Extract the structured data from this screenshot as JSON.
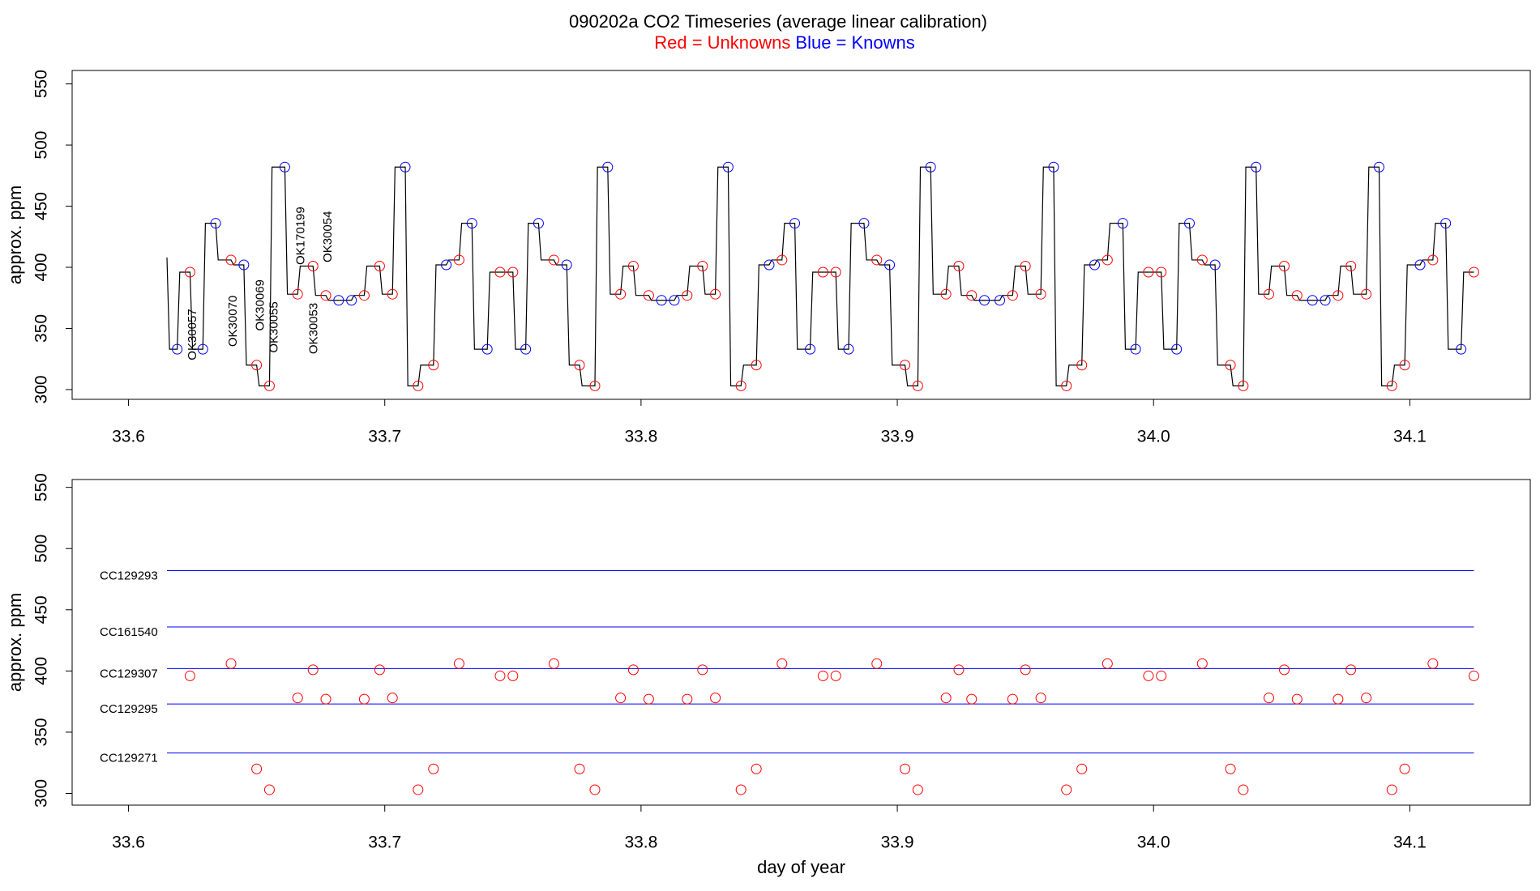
{
  "title": "090202a   CO2 Timeseries (average linear calibration)",
  "subtitle": [
    {
      "text": "Red = Unknowns",
      "color": "#ff0000"
    },
    {
      "text": "Blue = Knowns",
      "color": "#0000ff"
    }
  ],
  "chart_data": [
    {
      "type": "line",
      "ylabel": "approx. ppm",
      "xlim": [
        33.578,
        34.147
      ],
      "ylim": [
        292,
        561
      ],
      "xticks": [
        33.6,
        33.7,
        33.8,
        33.9,
        {
          "value": 34,
          "label": "34.0"
        },
        34.1
      ],
      "yticks": [
        300,
        350,
        400,
        450,
        500,
        550
      ],
      "series": [
        {
          "mode": "line",
          "color": "#000000",
          "x": [
            33.615,
            33.616,
            33.619,
            33.62,
            33.624,
            33.625,
            33.629,
            33.63,
            33.634,
            33.635,
            33.64,
            33.641,
            33.645,
            33.646,
            33.65,
            33.651,
            33.655,
            33.656,
            33.661,
            33.662,
            33.666,
            33.667,
            33.672,
            33.673,
            33.677,
            33.678,
            33.682,
            33.683,
            33.687,
            33.688,
            33.692,
            33.693,
            33.698,
            33.699,
            33.703,
            33.704,
            33.708,
            33.709,
            33.713,
            33.714,
            33.719,
            33.72,
            33.724,
            33.725,
            33.729,
            33.73,
            33.734,
            33.735,
            33.74,
            33.741,
            33.745,
            33.746,
            33.75,
            33.751,
            33.755,
            33.756,
            33.76,
            33.761,
            33.766,
            33.767,
            33.771,
            33.772,
            33.776,
            33.777,
            33.782,
            33.783,
            33.787,
            33.788,
            33.792,
            33.793,
            33.797,
            33.798,
            33.803,
            33.804,
            33.808,
            33.809,
            33.813,
            33.814,
            33.818,
            33.819,
            33.824,
            33.825,
            33.829,
            33.83,
            33.834,
            33.835,
            33.839,
            33.84,
            33.845,
            33.846,
            33.85,
            33.851,
            33.855,
            33.856,
            33.86,
            33.861,
            33.866,
            33.867,
            33.871,
            33.872,
            33.876,
            33.877,
            33.881,
            33.882,
            33.887,
            33.888,
            33.892,
            33.893,
            33.897,
            33.898,
            33.903,
            33.904,
            33.908,
            33.909,
            33.913,
            33.914,
            33.919,
            33.92,
            33.924,
            33.925,
            33.929,
            33.93,
            33.934,
            33.935,
            33.94,
            33.941,
            33.945,
            33.946,
            33.95,
            33.951,
            33.956,
            33.957,
            33.961,
            33.962,
            33.966,
            33.967,
            33.972,
            33.973,
            33.977,
            33.978,
            33.982,
            33.983,
            33.988,
            33.989,
            33.993,
            33.994,
            33.998,
            33.999,
            34.003,
            34.004,
            34.009,
            34.01,
            34.014,
            34.015,
            34.019,
            34.02,
            34.024,
            34.025,
            34.03,
            34.031,
            34.035,
            34.036,
            34.04,
            34.041,
            34.045,
            34.046,
            34.051,
            34.052,
            34.056,
            34.057,
            34.062,
            34.063,
            34.067,
            34.068,
            34.072,
            34.073,
            34.077,
            34.078,
            34.083,
            34.084,
            34.088,
            34.089,
            34.093,
            34.094,
            34.098,
            34.099,
            34.104,
            34.105,
            34.109,
            34.11,
            34.114,
            34.115,
            34.12,
            34.121,
            34.125
          ],
          "values": [
            408,
            333,
            333,
            396,
            396,
            333,
            333,
            436,
            436,
            406,
            406,
            402,
            402,
            320,
            320,
            303,
            303,
            482,
            482,
            378,
            378,
            401,
            401,
            377,
            377,
            373,
            373,
            373,
            373,
            377,
            377,
            401,
            401,
            378,
            378,
            482,
            482,
            303,
            303,
            320,
            320,
            402,
            402,
            406,
            406,
            436,
            436,
            333,
            333,
            396,
            396,
            396,
            396,
            333,
            333,
            436,
            436,
            406,
            406,
            402,
            402,
            320,
            320,
            303,
            303,
            482,
            482,
            378,
            378,
            401,
            401,
            377,
            377,
            373,
            373,
            373,
            373,
            377,
            377,
            401,
            401,
            378,
            378,
            482,
            482,
            303,
            303,
            320,
            320,
            402,
            402,
            406,
            406,
            436,
            436,
            333,
            333,
            396,
            396,
            396,
            396,
            333,
            333,
            436,
            436,
            406,
            406,
            402,
            402,
            320,
            320,
            303,
            303,
            482,
            482,
            378,
            378,
            401,
            401,
            377,
            377,
            373,
            373,
            373,
            373,
            377,
            377,
            401,
            401,
            378,
            378,
            482,
            482,
            303,
            303,
            320,
            320,
            402,
            402,
            406,
            406,
            436,
            436,
            333,
            333,
            396,
            396,
            396,
            396,
            333,
            333,
            436,
            436,
            406,
            406,
            402,
            402,
            320,
            320,
            303,
            303,
            482,
            482,
            378,
            378,
            401,
            401,
            377,
            377,
            373,
            373,
            373,
            373,
            377,
            377,
            401,
            401,
            378,
            378,
            482,
            482,
            303,
            303,
            320,
            320,
            402,
            402,
            406,
            406,
            436,
            436,
            333,
            333,
            396,
            396
          ]
        },
        {
          "mode": "points",
          "color": "#ff0000",
          "x": [
            33.624,
            33.64,
            33.65,
            33.655,
            33.666,
            33.672,
            33.677,
            33.692,
            33.698,
            33.703,
            33.713,
            33.719,
            33.729,
            33.745,
            33.75,
            33.766,
            33.776,
            33.782,
            33.792,
            33.797,
            33.803,
            33.818,
            33.824,
            33.829,
            33.839,
            33.845,
            33.855,
            33.871,
            33.876,
            33.892,
            33.903,
            33.908,
            33.919,
            33.924,
            33.929,
            33.945,
            33.95,
            33.956,
            33.966,
            33.972,
            33.982,
            33.998,
            34.003,
            34.019,
            34.03,
            34.035,
            34.045,
            34.051,
            34.056,
            34.072,
            34.077,
            34.083,
            34.093,
            34.098,
            34.109,
            34.125
          ],
          "values": [
            396,
            406,
            320,
            303,
            378,
            401,
            377,
            377,
            401,
            378,
            303,
            320,
            406,
            396,
            396,
            406,
            320,
            303,
            378,
            401,
            377,
            377,
            401,
            378,
            303,
            320,
            406,
            396,
            396,
            406,
            320,
            303,
            378,
            401,
            377,
            377,
            401,
            378,
            303,
            320,
            406,
            396,
            396,
            406,
            320,
            303,
            378,
            401,
            377,
            377,
            401,
            378,
            303,
            320,
            406,
            396
          ]
        },
        {
          "mode": "points",
          "color": "#0000ff",
          "x": [
            33.619,
            33.629,
            33.634,
            33.645,
            33.661,
            33.682,
            33.687,
            33.708,
            33.724,
            33.734,
            33.74,
            33.755,
            33.76,
            33.771,
            33.787,
            33.808,
            33.813,
            33.834,
            33.85,
            33.86,
            33.866,
            33.881,
            33.887,
            33.897,
            33.913,
            33.934,
            33.94,
            33.961,
            33.977,
            33.988,
            33.993,
            34.009,
            34.014,
            34.024,
            34.04,
            34.062,
            34.067,
            34.088,
            34.104,
            34.114,
            34.12
          ],
          "values": [
            333,
            333,
            436,
            402,
            482,
            373,
            373,
            482,
            402,
            436,
            333,
            333,
            436,
            402,
            482,
            373,
            373,
            482,
            402,
            436,
            333,
            333,
            436,
            402,
            482,
            373,
            373,
            482,
            402,
            436,
            333,
            333,
            436,
            402,
            482,
            373,
            373,
            482,
            402,
            436,
            333
          ]
        }
      ],
      "annotations": [
        {
          "text": "OK30057",
          "x": 33.6252,
          "y": 324
        },
        {
          "text": "OK30070",
          "x": 33.641,
          "y": 335
        },
        {
          "text": "OK30069",
          "x": 33.6516,
          "y": 348
        },
        {
          "text": "OK30055",
          "x": 33.657,
          "y": 330
        },
        {
          "text": "OK170199",
          "x": 33.6674,
          "y": 402
        },
        {
          "text": "OK30053",
          "x": 33.6725,
          "y": 329
        },
        {
          "text": "OK30054",
          "x": 33.678,
          "y": 404
        }
      ],
      "annotation_color": "#ff0000"
    },
    {
      "type": "scatter",
      "ylabel": "approx. ppm",
      "xlabel": "day of year",
      "xlim": [
        33.578,
        34.147
      ],
      "ylim": [
        290.4,
        556.4
      ],
      "xticks": [
        33.6,
        33.7,
        33.8,
        33.9,
        {
          "value": 34,
          "label": "34.0"
        },
        34.1
      ],
      "yticks": [
        300,
        350,
        400,
        450,
        500,
        550
      ],
      "reference_color": "#0000ff",
      "reference_lines": [
        {
          "label": "CC129293",
          "value": 482
        },
        {
          "label": "CC161540",
          "value": 436
        },
        {
          "label": "CC129307",
          "value": 402
        },
        {
          "label": "CC129295",
          "value": 373
        },
        {
          "label": "CC129271",
          "value": 333
        }
      ]
    }
  ]
}
